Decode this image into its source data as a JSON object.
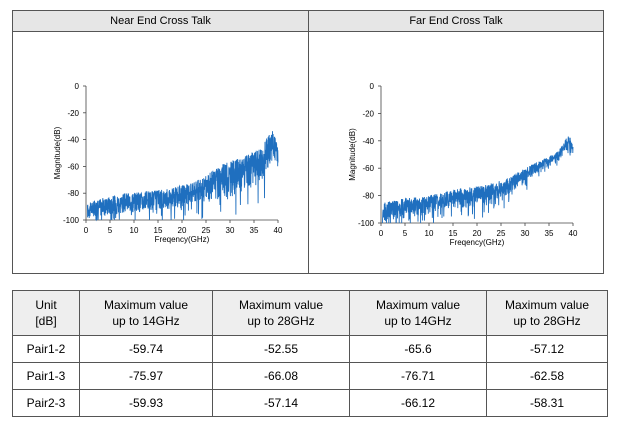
{
  "chart_data": [
    {
      "type": "line",
      "title": "Near End Cross Talk",
      "xlabel": "Freqency(GHz)",
      "ylabel": "Magnitude(dB)",
      "xlim": [
        0,
        40
      ],
      "ylim": [
        -100,
        0
      ],
      "xticks": [
        "0",
        "5",
        "10",
        "15",
        "20",
        "25",
        "30",
        "35",
        "40"
      ],
      "yticks": [
        "0",
        "-20",
        "-40",
        "-60",
        "-80",
        "-100"
      ],
      "series_color": "#1f6fbf",
      "envelope": {
        "x": [
          0.3,
          2,
          5,
          8,
          10,
          12,
          14,
          16,
          18,
          20,
          22,
          24,
          26,
          28,
          30,
          32,
          34,
          36,
          37,
          38,
          38.8,
          39.5,
          40
        ],
        "upper": [
          -88,
          -85,
          -82,
          -80,
          -79,
          -79,
          -78,
          -77,
          -76,
          -74,
          -72,
          -69,
          -64,
          -59,
          -56,
          -54,
          -51,
          -46,
          -42,
          -36,
          -32,
          -38,
          -45
        ],
        "lower": [
          -100,
          -98,
          -97,
          -96,
          -95,
          -95,
          -94,
          -93,
          -92,
          -91,
          -89,
          -88,
          -86,
          -85,
          -83,
          -80,
          -78,
          -73,
          -70,
          -62,
          -55,
          -58,
          -62
        ]
      }
    },
    {
      "type": "line",
      "title": "Far End Cross Talk",
      "xlabel": "Freqency(GHz)",
      "ylabel": "Magnitude(dB)",
      "xlim": [
        0,
        40
      ],
      "ylim": [
        -100,
        0
      ],
      "xticks": [
        "0",
        "5",
        "10",
        "15",
        "20",
        "25",
        "30",
        "35",
        "40"
      ],
      "yticks": [
        "0",
        "-20",
        "-40",
        "-60",
        "-80",
        "-100"
      ],
      "series_color": "#1f6fbf",
      "envelope": {
        "x": [
          0.3,
          2,
          5,
          8,
          10,
          12,
          14,
          16,
          18,
          20,
          22,
          24,
          26,
          28,
          30,
          32,
          34,
          36,
          37,
          38,
          38.8,
          39.5,
          40
        ],
        "upper": [
          -86,
          -84,
          -82,
          -81,
          -80,
          -78,
          -76,
          -75,
          -74,
          -73,
          -72,
          -70,
          -68,
          -64,
          -60,
          -56,
          -53,
          -50,
          -47,
          -42,
          -36,
          -38,
          -44
        ],
        "lower": [
          -100,
          -99,
          -97,
          -95,
          -94,
          -92,
          -90,
          -90,
          -89,
          -88,
          -87,
          -85,
          -81,
          -76,
          -71,
          -65,
          -61,
          -58,
          -55,
          -52,
          -48,
          -50,
          -52
        ]
      }
    }
  ],
  "table": {
    "headers": [
      "Unit\n[dB]",
      "Maximum value\nup to 14GHz",
      "Maximum value\nup to 28GHz",
      "Maximum value\nup to 14GHz",
      "Maximum value\nup to 28GHz"
    ],
    "rows": [
      [
        "Pair1-2",
        "-59.74",
        "-52.55",
        "-65.6",
        "-57.12"
      ],
      [
        "Pair1-3",
        "-75.97",
        "-66.08",
        "-76.71",
        "-62.58"
      ],
      [
        "Pair2-3",
        "-59.93",
        "-57.14",
        "-66.12",
        "-58.31"
      ]
    ]
  }
}
